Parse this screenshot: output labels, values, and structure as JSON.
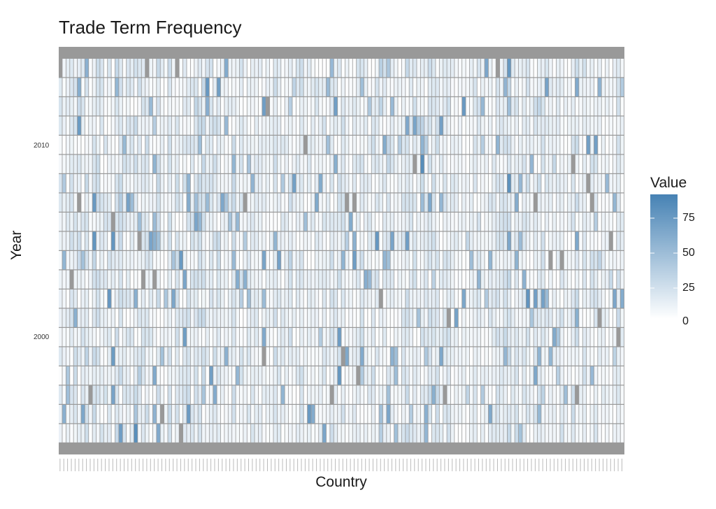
{
  "chart_data": {
    "type": "heatmap",
    "title": "Trade Term Frequency",
    "xlabel": "Country",
    "ylabel": "Year",
    "y_ticks": [
      "2010",
      "2000"
    ],
    "y_range": [
      1995,
      2014
    ],
    "legend": {
      "title": "Value",
      "ticks": [
        "75",
        "50",
        "25",
        "0"
      ],
      "range": [
        0,
        92
      ],
      "position": "right"
    },
    "color_low": "#ffffff",
    "color_high": "#4682b4",
    "na_color": "#999999",
    "grid": false
  }
}
